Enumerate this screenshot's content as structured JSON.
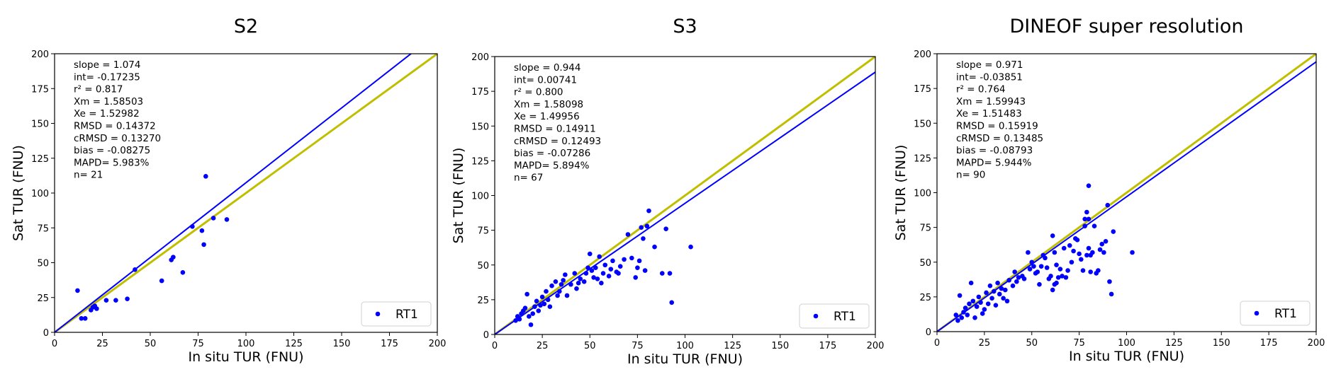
{
  "chart_data": [
    {
      "type": "scatter",
      "title": "S2",
      "xlabel": "In situ TUR (FNU)",
      "ylabel": "Sat TUR (FNU)",
      "xlim": [
        0,
        200
      ],
      "ylim": [
        0,
        200
      ],
      "xticks": [
        0,
        25,
        50,
        75,
        100,
        125,
        150,
        175,
        200
      ],
      "yticks": [
        0,
        25,
        50,
        75,
        100,
        125,
        150,
        175,
        200
      ],
      "grid": false,
      "legend_position": "bottom-right",
      "stats": [
        "slope = 1.074",
        "int= -0.17235",
        "r² = 0.817",
        "Xm = 1.58503",
        "Xe = 1.52982",
        "RMSD = 0.14372",
        "cRMSD = 0.13270",
        "bias = -0.08275",
        "MAPD= 5.983%",
        "n= 21"
      ],
      "fit_slope": 1.074,
      "one_to_one": true,
      "colors": {
        "points": "#0000ff",
        "fit": "#0000ff",
        "identity": "#bfbf00"
      },
      "series": [
        {
          "name": "RT1",
          "points": [
            [
              12,
              30
            ],
            [
              14,
              10
            ],
            [
              16,
              10
            ],
            [
              19,
              16
            ],
            [
              21,
              19
            ],
            [
              22,
              17
            ],
            [
              27,
              23
            ],
            [
              32,
              23
            ],
            [
              38,
              24
            ],
            [
              42,
              45
            ],
            [
              56,
              37
            ],
            [
              61,
              52
            ],
            [
              62,
              54
            ],
            [
              67,
              43
            ],
            [
              72,
              76
            ],
            [
              77,
              73
            ],
            [
              78,
              63
            ],
            [
              79,
              112
            ],
            [
              83,
              82
            ],
            [
              90,
              81
            ],
            [
              20,
              18
            ]
          ]
        }
      ]
    },
    {
      "type": "scatter",
      "title": "S3",
      "xlabel": "In situ TUR (FNU)",
      "ylabel": "Sat TUR (FNU)",
      "xlim": [
        0,
        200
      ],
      "ylim": [
        0,
        200
      ],
      "xticks": [
        0,
        25,
        50,
        75,
        100,
        125,
        150,
        175,
        200
      ],
      "yticks": [
        0,
        25,
        50,
        75,
        100,
        125,
        150,
        175,
        200
      ],
      "grid": false,
      "legend_position": "bottom-right",
      "stats": [
        "slope = 0.944",
        "int= 0.00741",
        "r² = 0.800",
        "Xm = 1.58098",
        "Xe = 1.49956",
        "RMSD = 0.14911",
        "cRMSD = 0.12493",
        "bias = -0.07286",
        "MAPD= 5.894%",
        "n= 67"
      ],
      "fit_slope": 0.944,
      "one_to_one": true,
      "colors": {
        "points": "#0000ff",
        "fit": "#0000ff",
        "identity": "#bfbf00"
      },
      "series": [
        {
          "name": "RT1",
          "points": [
            [
              11,
              10
            ],
            [
              12,
              13
            ],
            [
              13,
              11
            ],
            [
              14,
              15
            ],
            [
              15,
              17
            ],
            [
              16,
              19
            ],
            [
              17,
              29
            ],
            [
              18,
              13
            ],
            [
              19,
              7
            ],
            [
              20,
              15
            ],
            [
              21,
              20
            ],
            [
              22,
              24
            ],
            [
              23,
              17
            ],
            [
              24,
              21
            ],
            [
              25,
              27
            ],
            [
              26,
              22
            ],
            [
              27,
              31
            ],
            [
              28,
              25
            ],
            [
              29,
              20
            ],
            [
              30,
              35
            ],
            [
              32,
              38
            ],
            [
              33,
              28
            ],
            [
              34,
              31
            ],
            [
              35,
              36
            ],
            [
              36,
              39
            ],
            [
              37,
              43
            ],
            [
              38,
              28
            ],
            [
              40,
              36
            ],
            [
              42,
              44
            ],
            [
              43,
              33
            ],
            [
              44,
              37
            ],
            [
              45,
              40
            ],
            [
              47,
              38
            ],
            [
              48,
              44
            ],
            [
              49,
              48
            ],
            [
              50,
              58
            ],
            [
              51,
              46
            ],
            [
              52,
              41
            ],
            [
              53,
              48
            ],
            [
              54,
              40
            ],
            [
              55,
              56
            ],
            [
              56,
              37
            ],
            [
              57,
              44
            ],
            [
              58,
              50
            ],
            [
              60,
              42
            ],
            [
              61,
              47
            ],
            [
              62,
              53
            ],
            [
              64,
              45
            ],
            [
              65,
              44
            ],
            [
              66,
              49
            ],
            [
              68,
              54
            ],
            [
              70,
              72
            ],
            [
              72,
              55
            ],
            [
              74,
              41
            ],
            [
              75,
              48
            ],
            [
              76,
              53
            ],
            [
              77,
              77
            ],
            [
              78,
              69
            ],
            [
              79,
              46
            ],
            [
              80,
              78
            ],
            [
              81,
              89
            ],
            [
              84,
              63
            ],
            [
              88,
              44
            ],
            [
              90,
              76
            ],
            [
              92,
              44
            ],
            [
              93,
              23
            ],
            [
              103,
              63
            ]
          ]
        }
      ]
    },
    {
      "type": "scatter",
      "title": "DINEOF super resolution",
      "xlabel": "In situ TUR (FNU)",
      "ylabel": "Sat TUR (FNU)",
      "xlim": [
        0,
        200
      ],
      "ylim": [
        0,
        200
      ],
      "xticks": [
        0,
        25,
        50,
        75,
        100,
        125,
        150,
        175,
        200
      ],
      "yticks": [
        0,
        25,
        50,
        75,
        100,
        125,
        150,
        175,
        200
      ],
      "grid": false,
      "legend_position": "bottom-right",
      "stats": [
        "slope = 0.971",
        "int= -0.03851",
        "r² = 0.764",
        "Xm = 1.59943",
        "Xe = 1.51483",
        "RMSD = 0.15919",
        "cRMSD = 0.13485",
        "bias = -0.08793",
        "MAPD= 5.944%",
        "n= 90"
      ],
      "fit_slope": 0.971,
      "one_to_one": true,
      "colors": {
        "points": "#0000ff",
        "fit": "#0000ff",
        "identity": "#bfbf00"
      },
      "series": [
        {
          "name": "RT1",
          "points": [
            [
              10,
              12
            ],
            [
              11,
              8
            ],
            [
              12,
              26
            ],
            [
              13,
              10
            ],
            [
              14,
              14
            ],
            [
              15,
              17
            ],
            [
              16,
              12
            ],
            [
              17,
              20
            ],
            [
              18,
              35
            ],
            [
              19,
              22
            ],
            [
              20,
              10
            ],
            [
              21,
              18
            ],
            [
              22,
              25
            ],
            [
              23,
              21
            ],
            [
              24,
              13
            ],
            [
              25,
              16
            ],
            [
              26,
              28
            ],
            [
              27,
              20
            ],
            [
              28,
              33
            ],
            [
              29,
              24
            ],
            [
              30,
              29
            ],
            [
              31,
              19
            ],
            [
              32,
              35
            ],
            [
              33,
              27
            ],
            [
              34,
              31
            ],
            [
              35,
              24
            ],
            [
              36,
              30
            ],
            [
              37,
              22
            ],
            [
              38,
              37
            ],
            [
              40,
              33
            ],
            [
              41,
              43
            ],
            [
              42,
              36
            ],
            [
              43,
              39
            ],
            [
              45,
              40
            ],
            [
              46,
              38
            ],
            [
              48,
              57
            ],
            [
              49,
              45
            ],
            [
              50,
              50
            ],
            [
              51,
              47
            ],
            [
              52,
              42
            ],
            [
              53,
              43
            ],
            [
              54,
              34
            ],
            [
              55,
              47
            ],
            [
              56,
              55
            ],
            [
              57,
              53
            ],
            [
              58,
              46
            ],
            [
              59,
              38
            ],
            [
              60,
              40
            ],
            [
              61,
              69
            ],
            [
              62,
              57
            ],
            [
              63,
              48
            ],
            [
              64,
              39
            ],
            [
              65,
              45
            ],
            [
              66,
              40
            ],
            [
              67,
              60
            ],
            [
              68,
              39
            ],
            [
              69,
              44
            ],
            [
              70,
              62
            ],
            [
              71,
              50
            ],
            [
              72,
              58
            ],
            [
              73,
              67
            ],
            [
              74,
              66
            ],
            [
              75,
              56
            ],
            [
              76,
              52
            ],
            [
              77,
              44
            ],
            [
              78,
              81
            ],
            [
              79,
              86
            ],
            [
              80,
              60
            ],
            [
              81,
              55
            ],
            [
              82,
              57
            ],
            [
              83,
              76
            ],
            [
              84,
              42
            ],
            [
              85,
              44
            ],
            [
              86,
              59
            ],
            [
              87,
              63
            ],
            [
              88,
              57
            ],
            [
              89,
              65
            ],
            [
              90,
              91
            ],
            [
              91,
              36
            ],
            [
              92,
              27
            ],
            [
              93,
              72
            ],
            [
              103,
              57
            ],
            [
              80,
              105
            ],
            [
              78,
              76
            ],
            [
              79,
              55
            ],
            [
              80,
              81
            ],
            [
              81,
              43
            ],
            [
              61,
              30
            ],
            [
              62,
              34
            ],
            [
              63,
              35
            ]
          ]
        }
      ]
    }
  ]
}
